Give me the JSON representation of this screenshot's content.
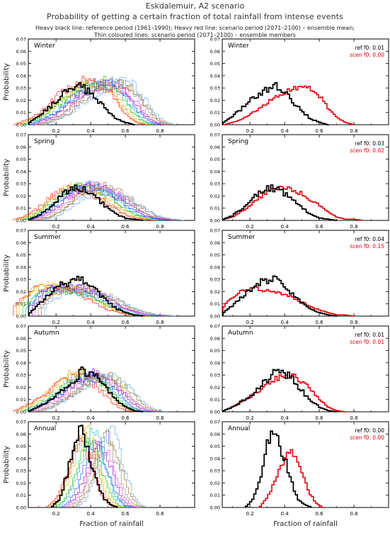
{
  "header": {
    "title": "Eskdalemuir, A2 scenario",
    "subtitle": "Probability of getting a certain fraction of total rainfall from intense events",
    "note_line1": "Heavy black line: reference period (1961–1990); Heavy red line: scenario period (2071–2100) – ensemble mean;",
    "note_line2": "Thin coloured lines: scenario period (2071–2100) – ensemble members"
  },
  "colors": {
    "reference": "#000000",
    "scenario_mean": "#e8000b",
    "members": [
      "#ff0000",
      "#ff7f00",
      "#d4c200",
      "#00c000",
      "#00b4b4",
      "#0040ff",
      "#8c00d0",
      "#ff40c0",
      "#808080",
      "#a06000",
      "#50a0ff"
    ]
  },
  "chart_data": [
    {
      "type": "line",
      "panel": "winter-members",
      "label": "Winter",
      "ylabel": "Probability",
      "x_ticks": [
        "0.2",
        "0.4",
        "0.6",
        "0.8"
      ],
      "y_ticks": [
        "0.00",
        "0.01",
        "0.02",
        "0.03",
        "0.04",
        "0.05",
        "0.06",
        "0.07"
      ],
      "xlim": [
        0.04,
        1.0
      ],
      "ylim": [
        0,
        0.07
      ],
      "series": [
        {
          "name": "Reference 1961-1990",
          "x": [
            0.05,
            0.1,
            0.15,
            0.2,
            0.25,
            0.3,
            0.35,
            0.4,
            0.45,
            0.5,
            0.55,
            0.6,
            0.65
          ],
          "y": [
            0.002,
            0.007,
            0.013,
            0.019,
            0.026,
            0.029,
            0.031,
            0.026,
            0.019,
            0.011,
            0.005,
            0.002,
            0
          ]
        },
        {
          "name": "Ensemble members 2071-2100",
          "x": [
            0.05,
            0.1,
            0.15,
            0.2,
            0.25,
            0.3,
            0.35,
            0.4,
            0.45,
            0.5,
            0.55,
            0.6,
            0.65,
            0.7,
            0.75,
            0.8
          ],
          "y": [
            0,
            0.003,
            0.006,
            0.01,
            0.016,
            0.022,
            0.027,
            0.031,
            0.034,
            0.035,
            0.033,
            0.026,
            0.016,
            0.007,
            0.002,
            0
          ]
        }
      ]
    },
    {
      "type": "line",
      "panel": "winter-mean",
      "label": "Winter",
      "x_ticks": [
        "0.2",
        "0.4",
        "0.6",
        "0.8"
      ],
      "y_ticks": [
        "0.00",
        "0.01",
        "0.02",
        "0.03",
        "0.04",
        "0.05",
        "0.06",
        "0.07"
      ],
      "xlim": [
        0.04,
        1.0
      ],
      "ylim": [
        0,
        0.07
      ],
      "annotations": {
        "ref_f0": "ref  f0: 0.01",
        "scen_f0": "scen f0: 0.00"
      },
      "series": [
        {
          "name": "Reference 1961-1990",
          "x": [
            0.05,
            0.1,
            0.15,
            0.2,
            0.25,
            0.3,
            0.35,
            0.4,
            0.45,
            0.5,
            0.55,
            0.6,
            0.65
          ],
          "y": [
            0.002,
            0.007,
            0.013,
            0.019,
            0.026,
            0.029,
            0.031,
            0.026,
            0.019,
            0.011,
            0.005,
            0.002,
            0
          ]
        },
        {
          "name": "Scenario 2071-2100 ensemble mean",
          "x": [
            0.05,
            0.1,
            0.15,
            0.2,
            0.25,
            0.3,
            0.35,
            0.4,
            0.45,
            0.5,
            0.55,
            0.6,
            0.65,
            0.7,
            0.75,
            0.8
          ],
          "y": [
            0,
            0.002,
            0.004,
            0.008,
            0.013,
            0.018,
            0.023,
            0.027,
            0.03,
            0.032,
            0.03,
            0.024,
            0.014,
            0.006,
            0.002,
            0
          ]
        }
      ]
    },
    {
      "type": "line",
      "panel": "spring-members",
      "label": "Spring",
      "ylabel": "Probability",
      "x_ticks": [
        "0.2",
        "0.4",
        "0.6",
        "0.8"
      ],
      "y_ticks": [
        "0.00",
        "0.01",
        "0.02",
        "0.03",
        "0.04",
        "0.05",
        "0.06",
        "0.07"
      ],
      "xlim": [
        0.04,
        1.0
      ],
      "ylim": [
        0,
        0.07
      ],
      "series": [
        {
          "name": "Reference 1961-1990",
          "x": [
            0.05,
            0.1,
            0.15,
            0.2,
            0.25,
            0.3,
            0.35,
            0.4,
            0.45,
            0.5,
            0.55,
            0.6,
            0.65,
            0.7
          ],
          "y": [
            0.001,
            0.004,
            0.009,
            0.016,
            0.023,
            0.027,
            0.026,
            0.022,
            0.016,
            0.01,
            0.005,
            0.002,
            0.001,
            0
          ]
        },
        {
          "name": "Ensemble members 2071-2100",
          "x": [
            0.05,
            0.1,
            0.15,
            0.2,
            0.25,
            0.3,
            0.35,
            0.4,
            0.45,
            0.5,
            0.55,
            0.6,
            0.65,
            0.7,
            0.75,
            0.8,
            0.85
          ],
          "y": [
            0.001,
            0.003,
            0.007,
            0.012,
            0.018,
            0.023,
            0.026,
            0.027,
            0.025,
            0.022,
            0.018,
            0.013,
            0.008,
            0.004,
            0.002,
            0.001,
            0
          ]
        }
      ]
    },
    {
      "type": "line",
      "panel": "spring-mean",
      "label": "Spring",
      "x_ticks": [
        "0.2",
        "0.4",
        "0.6",
        "0.8"
      ],
      "y_ticks": [
        "0.00",
        "0.01",
        "0.02",
        "0.03",
        "0.04",
        "0.05",
        "0.06",
        "0.07"
      ],
      "xlim": [
        0.04,
        1.0
      ],
      "ylim": [
        0,
        0.07
      ],
      "annotations": {
        "ref_f0": "ref  f0: 0.03",
        "scen_f0": "scen f0: 0.02"
      },
      "series": [
        {
          "name": "Reference 1961-1990",
          "x": [
            0.05,
            0.1,
            0.15,
            0.2,
            0.25,
            0.3,
            0.35,
            0.4,
            0.45,
            0.5,
            0.55,
            0.6,
            0.65,
            0.7
          ],
          "y": [
            0.001,
            0.004,
            0.009,
            0.016,
            0.023,
            0.027,
            0.026,
            0.022,
            0.016,
            0.01,
            0.005,
            0.002,
            0.001,
            0
          ]
        },
        {
          "name": "Scenario 2071-2100 ensemble mean",
          "x": [
            0.05,
            0.1,
            0.15,
            0.2,
            0.25,
            0.3,
            0.35,
            0.4,
            0.45,
            0.5,
            0.55,
            0.6,
            0.65,
            0.7,
            0.75,
            0.8,
            0.85
          ],
          "y": [
            0.001,
            0.003,
            0.007,
            0.012,
            0.018,
            0.023,
            0.026,
            0.027,
            0.025,
            0.022,
            0.017,
            0.012,
            0.007,
            0.003,
            0.001,
            0.001,
            0
          ]
        }
      ]
    },
    {
      "type": "line",
      "panel": "summer-members",
      "label": "Summer",
      "ylabel": "Probability",
      "x_ticks": [
        "0.2",
        "0.4",
        "0.6",
        "0.8"
      ],
      "y_ticks": [
        "0.00",
        "0.01",
        "0.02",
        "0.03",
        "0.04",
        "0.05",
        "0.06",
        "0.07"
      ],
      "xlim": [
        0.04,
        1.0
      ],
      "ylim": [
        0,
        0.07
      ],
      "series": [
        {
          "name": "Reference 1961-1990",
          "x": [
            0.05,
            0.1,
            0.15,
            0.2,
            0.25,
            0.3,
            0.35,
            0.4,
            0.45,
            0.5,
            0.55,
            0.6,
            0.65,
            0.7
          ],
          "y": [
            0.003,
            0.009,
            0.016,
            0.022,
            0.027,
            0.028,
            0.03,
            0.025,
            0.018,
            0.011,
            0.006,
            0.003,
            0.001,
            0
          ]
        },
        {
          "name": "Ensemble members 2071-2100",
          "x": [
            0.05,
            0.1,
            0.15,
            0.2,
            0.25,
            0.3,
            0.35,
            0.4,
            0.45,
            0.5,
            0.55,
            0.6,
            0.65,
            0.7,
            0.75,
            0.8
          ],
          "y": [
            0.008,
            0.016,
            0.021,
            0.023,
            0.023,
            0.022,
            0.021,
            0.019,
            0.016,
            0.012,
            0.008,
            0.005,
            0.003,
            0.001,
            0.001,
            0
          ]
        }
      ]
    },
    {
      "type": "line",
      "panel": "summer-mean",
      "label": "Summer",
      "x_ticks": [
        "0.2",
        "0.4",
        "0.6",
        "0.8"
      ],
      "y_ticks": [
        "0.00",
        "0.01",
        "0.02",
        "0.03",
        "0.04",
        "0.05",
        "0.06",
        "0.07"
      ],
      "xlim": [
        0.04,
        1.0
      ],
      "ylim": [
        0,
        0.07
      ],
      "annotations": {
        "ref_f0": "ref  f0: 0.04",
        "scen_f0": "scen f0: 0.15"
      },
      "series": [
        {
          "name": "Reference 1961-1990",
          "x": [
            0.05,
            0.1,
            0.15,
            0.2,
            0.25,
            0.3,
            0.35,
            0.4,
            0.45,
            0.5,
            0.55,
            0.6,
            0.65,
            0.7
          ],
          "y": [
            0.003,
            0.009,
            0.016,
            0.022,
            0.027,
            0.028,
            0.03,
            0.025,
            0.018,
            0.011,
            0.006,
            0.003,
            0.001,
            0
          ]
        },
        {
          "name": "Scenario 2071-2100 ensemble mean",
          "x": [
            0.05,
            0.1,
            0.15,
            0.2,
            0.25,
            0.3,
            0.35,
            0.4,
            0.45,
            0.5,
            0.55,
            0.6,
            0.65,
            0.7,
            0.75,
            0.8
          ],
          "y": [
            0.008,
            0.016,
            0.02,
            0.022,
            0.022,
            0.021,
            0.02,
            0.018,
            0.015,
            0.011,
            0.008,
            0.005,
            0.003,
            0.001,
            0.001,
            0
          ]
        }
      ]
    },
    {
      "type": "line",
      "panel": "autumn-members",
      "label": "Autumn",
      "ylabel": "Probability",
      "x_ticks": [
        "0.2",
        "0.4",
        "0.6",
        "0.8"
      ],
      "y_ticks": [
        "0.00",
        "0.01",
        "0.02",
        "0.03",
        "0.04",
        "0.05",
        "0.06",
        "0.07"
      ],
      "xlim": [
        0.04,
        1.0
      ],
      "ylim": [
        0,
        0.07
      ],
      "series": [
        {
          "name": "Reference 1961-1990",
          "x": [
            0.05,
            0.1,
            0.15,
            0.2,
            0.25,
            0.3,
            0.35,
            0.4,
            0.45,
            0.5,
            0.55,
            0.6,
            0.65,
            0.7
          ],
          "y": [
            0.001,
            0.004,
            0.008,
            0.013,
            0.019,
            0.026,
            0.033,
            0.032,
            0.026,
            0.017,
            0.009,
            0.004,
            0.001,
            0
          ]
        },
        {
          "name": "Ensemble members 2071-2100",
          "x": [
            0.05,
            0.1,
            0.15,
            0.2,
            0.25,
            0.3,
            0.35,
            0.4,
            0.45,
            0.5,
            0.55,
            0.6,
            0.65,
            0.7,
            0.75
          ],
          "y": [
            0.001,
            0.004,
            0.008,
            0.012,
            0.017,
            0.022,
            0.027,
            0.029,
            0.028,
            0.024,
            0.017,
            0.01,
            0.004,
            0.001,
            0
          ]
        }
      ]
    },
    {
      "type": "line",
      "panel": "autumn-mean",
      "label": "Autumn",
      "x_ticks": [
        "0.2",
        "0.4",
        "0.6",
        "0.8"
      ],
      "y_ticks": [
        "0.00",
        "0.01",
        "0.02",
        "0.03",
        "0.04",
        "0.05",
        "0.06",
        "0.07"
      ],
      "xlim": [
        0.04,
        1.0
      ],
      "ylim": [
        0,
        0.07
      ],
      "annotations": {
        "ref_f0": "ref  f0: 0.01",
        "scen_f0": "scen f0: 0.01"
      },
      "series": [
        {
          "name": "Reference 1961-1990",
          "x": [
            0.05,
            0.1,
            0.15,
            0.2,
            0.25,
            0.3,
            0.35,
            0.4,
            0.45,
            0.5,
            0.55,
            0.6,
            0.65,
            0.7
          ],
          "y": [
            0.001,
            0.004,
            0.008,
            0.013,
            0.019,
            0.026,
            0.033,
            0.032,
            0.026,
            0.017,
            0.009,
            0.004,
            0.001,
            0
          ]
        },
        {
          "name": "Scenario 2071-2100 ensemble mean",
          "x": [
            0.05,
            0.1,
            0.15,
            0.2,
            0.25,
            0.3,
            0.35,
            0.4,
            0.45,
            0.5,
            0.55,
            0.6,
            0.65,
            0.7,
            0.75
          ],
          "y": [
            0.001,
            0.004,
            0.008,
            0.012,
            0.017,
            0.022,
            0.027,
            0.029,
            0.029,
            0.025,
            0.018,
            0.01,
            0.004,
            0.001,
            0
          ]
        }
      ]
    },
    {
      "type": "line",
      "panel": "annual-members",
      "label": "Annual",
      "ylabel": "Probability",
      "xlabel": "Fraction of rainfall",
      "x_ticks": [
        "0.2",
        "0.4",
        "0.6",
        "0.8"
      ],
      "y_ticks": [
        "0.00",
        "0.01",
        "0.02",
        "0.03",
        "0.04",
        "0.05",
        "0.06",
        "0.07"
      ],
      "xlim": [
        0.04,
        1.0
      ],
      "ylim": [
        0,
        0.07
      ],
      "series": [
        {
          "name": "Reference 1961-1990",
          "x": [
            0.18,
            0.22,
            0.26,
            0.3,
            0.33,
            0.36,
            0.4,
            0.44,
            0.48,
            0.52,
            0.56
          ],
          "y": [
            0.001,
            0.007,
            0.025,
            0.05,
            0.064,
            0.058,
            0.04,
            0.02,
            0.007,
            0.002,
            0
          ]
        },
        {
          "name": "Ensemble members 2071-2100",
          "x": [
            0.24,
            0.28,
            0.32,
            0.36,
            0.4,
            0.44,
            0.48,
            0.52,
            0.56,
            0.6,
            0.64
          ],
          "y": [
            0.001,
            0.006,
            0.017,
            0.034,
            0.05,
            0.057,
            0.044,
            0.024,
            0.009,
            0.002,
            0
          ]
        }
      ]
    },
    {
      "type": "line",
      "panel": "annual-mean",
      "label": "Annual",
      "xlabel": "Fraction of rainfall",
      "x_ticks": [
        "0.2",
        "0.4",
        "0.6",
        "0.8"
      ],
      "y_ticks": [
        "0.00",
        "0.01",
        "0.02",
        "0.03",
        "0.04",
        "0.05",
        "0.06",
        "0.07"
      ],
      "xlim": [
        0.04,
        1.0
      ],
      "ylim": [
        0,
        0.07
      ],
      "annotations": {
        "ref_f0": "ref  f0: 0.00",
        "scen_f0": "scen f0: 0.00"
      },
      "series": [
        {
          "name": "Reference 1961-1990",
          "x": [
            0.18,
            0.22,
            0.26,
            0.3,
            0.33,
            0.36,
            0.4,
            0.44,
            0.48,
            0.52,
            0.56
          ],
          "y": [
            0.001,
            0.007,
            0.025,
            0.05,
            0.064,
            0.058,
            0.04,
            0.02,
            0.007,
            0.002,
            0
          ]
        },
        {
          "name": "Scenario 2071-2100 ensemble mean",
          "x": [
            0.26,
            0.3,
            0.34,
            0.38,
            0.42,
            0.46,
            0.5,
            0.54,
            0.58,
            0.62
          ],
          "y": [
            0.001,
            0.008,
            0.02,
            0.034,
            0.046,
            0.045,
            0.03,
            0.013,
            0.004,
            0
          ]
        }
      ]
    }
  ]
}
